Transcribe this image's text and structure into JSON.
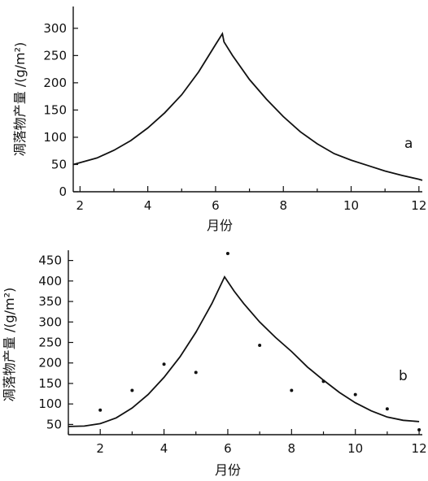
{
  "chart_data": [
    {
      "type": "line",
      "panel_label": "a",
      "xlabel": "月份",
      "ylabel": "凋落物产量 /(g/m²)",
      "xlim": [
        1.8,
        12.1
      ],
      "ylim": [
        0,
        340
      ],
      "x_ticks": [
        2,
        4,
        6,
        8,
        10,
        12
      ],
      "x_minor_ticks": [
        3,
        5,
        7,
        9,
        11
      ],
      "y_ticks": [
        0,
        50,
        100,
        150,
        200,
        250,
        300
      ],
      "series": [
        {
          "x": [
            1.8,
            2.5,
            3,
            3.5,
            4,
            4.5,
            5,
            5.5,
            6,
            6.2,
            6.25,
            6.5,
            7,
            7.5,
            8,
            8.5,
            9,
            9.5,
            10,
            10.5,
            11,
            11.5,
            12,
            12.1
          ],
          "values": [
            50,
            62,
            76,
            94,
            117,
            145,
            178,
            220,
            270,
            290,
            275,
            250,
            206,
            170,
            138,
            110,
            88,
            70,
            58,
            48,
            38,
            30,
            23,
            21
          ]
        }
      ]
    },
    {
      "type": "line",
      "panel_label": "b",
      "xlabel": "月份",
      "ylabel": "凋落物产量 /(g/m²)",
      "xlim": [
        1,
        12.1
      ],
      "ylim": [
        25,
        475
      ],
      "x_ticks": [
        2,
        4,
        6,
        8,
        10,
        12
      ],
      "x_minor_ticks": [
        1,
        3,
        5,
        7,
        9,
        11
      ],
      "y_ticks": [
        50,
        100,
        150,
        200,
        250,
        300,
        350,
        400,
        450
      ],
      "series": [
        {
          "x": [
            1,
            1.5,
            2,
            2.5,
            3,
            3.5,
            4,
            4.5,
            5,
            5.5,
            5.9,
            6.2,
            6.5,
            7,
            7.5,
            8,
            8.5,
            9,
            9.5,
            10,
            10.5,
            11,
            11.5,
            12
          ],
          "values": [
            45,
            46,
            52,
            66,
            90,
            123,
            165,
            215,
            275,
            345,
            410,
            375,
            345,
            300,
            262,
            228,
            190,
            158,
            128,
            103,
            83,
            68,
            60,
            57
          ]
        },
        {
          "x": [
            2,
            3,
            4,
            5,
            6,
            7,
            8,
            9,
            10,
            11,
            12
          ],
          "values": [
            85,
            133,
            197,
            177,
            467,
            243,
            133,
            155,
            123,
            88,
            37
          ]
        }
      ]
    }
  ]
}
